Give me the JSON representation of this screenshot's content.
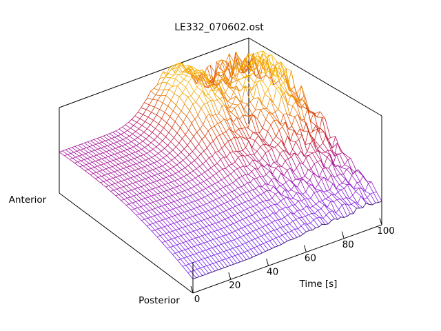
{
  "chart_data": {
    "type": "surface",
    "title": "LE332_070602.ost",
    "xlabel": "Time [s]",
    "ylabel_near": "Posterior",
    "ylabel_far": "Anterior",
    "xlim": [
      0,
      100
    ],
    "xticks": [
      "0",
      "20",
      "40",
      "60",
      "80",
      "100"
    ],
    "grid": false,
    "colormap": [
      "#6a1cf0",
      "#8a18d8",
      "#b0107a",
      "#d02a0c",
      "#ea7a00",
      "#f6b400"
    ],
    "surface_model": {
      "description_of_shape": "smooth ridge rising from posterior to anterior, flat/smooth for Time < 45 s, then strongly irregular with peaks near Time 55-70 s and Time 85-90 s",
      "peak_regions": [
        {
          "x": 58,
          "y": 0.85,
          "height": 1.0
        },
        {
          "x": 88,
          "y": 0.7,
          "height": 0.9
        }
      ],
      "baseline_height_near": 0.12,
      "baseline_height_far": 0.35
    }
  }
}
